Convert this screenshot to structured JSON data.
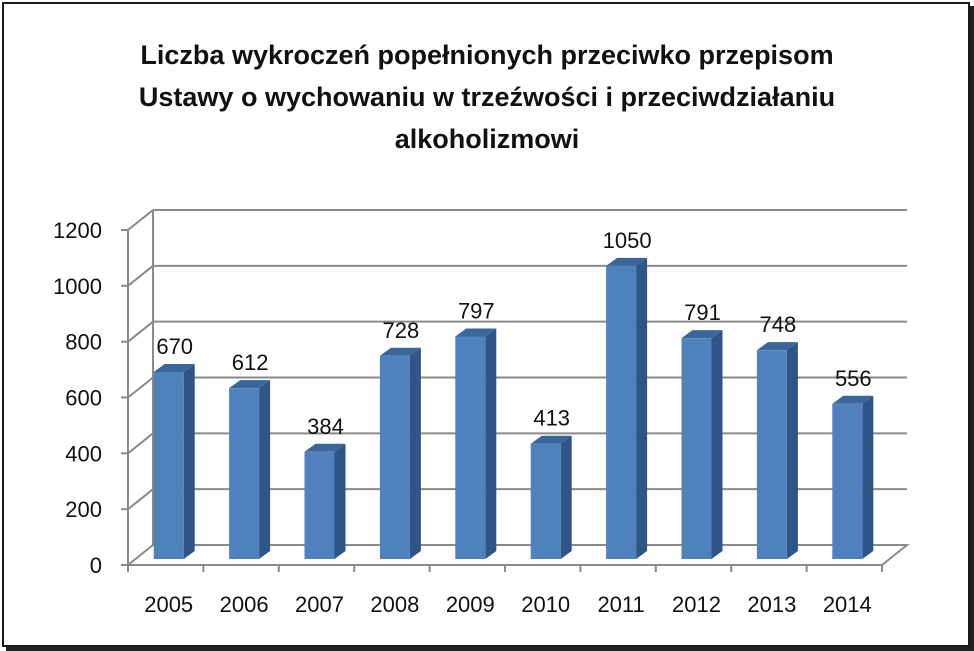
{
  "chart_data": {
    "type": "bar",
    "title_lines": [
      "Liczba wykroczeń popełnionych przeciwko przepisom",
      "Ustawy o wychowaniu w trzeźwości i przeciwdziałaniu",
      "alkoholizmowi"
    ],
    "categories": [
      "2005",
      "2006",
      "2007",
      "2008",
      "2009",
      "2010",
      "2011",
      "2012",
      "2013",
      "2014"
    ],
    "values": [
      670,
      612,
      384,
      728,
      797,
      413,
      1050,
      791,
      748,
      556
    ],
    "data_labels": [
      "670",
      "612",
      "384",
      "728",
      "797",
      "413",
      "1050",
      "791",
      "748",
      "556"
    ],
    "y_ticks": [
      "0",
      "200",
      "400",
      "600",
      "800",
      "1000",
      "1200"
    ],
    "ylim": [
      0,
      1200
    ],
    "grid": true,
    "legend": "none",
    "bar_color": "#4F81BD",
    "bar_side_color": "#2F5586",
    "bar_top_color": "#3A6699"
  }
}
